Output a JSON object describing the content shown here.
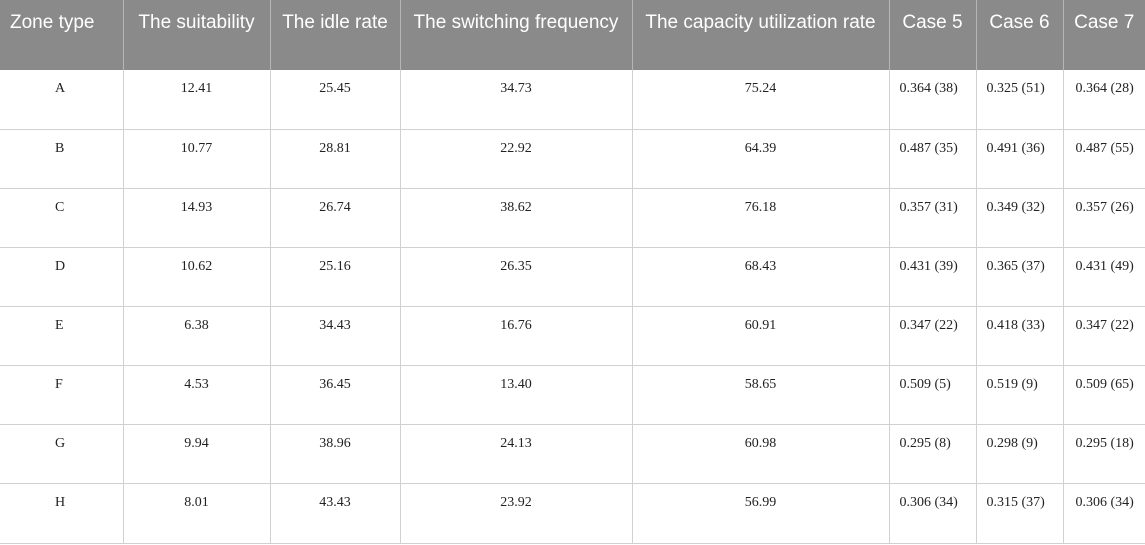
{
  "table": {
    "headers": [
      "Zone type",
      "The suitability",
      "The idle rate",
      "The switching frequency",
      "The capacity utilization rate",
      "Case 5",
      "Case 6",
      "Case 7"
    ],
    "rows": [
      [
        "A",
        "12.41",
        "25.45",
        "34.73",
        "75.24",
        "0.364 (38)",
        "0.325 (51)",
        "0.364 (28)"
      ],
      [
        "B",
        "10.77",
        "28.81",
        "22.92",
        "64.39",
        "0.487 (35)",
        "0.491 (36)",
        "0.487 (55)"
      ],
      [
        "C",
        "14.93",
        "26.74",
        "38.62",
        "76.18",
        "0.357 (31)",
        "0.349 (32)",
        "0.357 (26)"
      ],
      [
        "D",
        "10.62",
        "25.16",
        "26.35",
        "68.43",
        "0.431 (39)",
        "0.365 (37)",
        "0.431 (49)"
      ],
      [
        "E",
        "6.38",
        "34.43",
        "16.76",
        "60.91",
        "0.347 (22)",
        "0.418 (33)",
        "0.347 (22)"
      ],
      [
        "F",
        "4.53",
        "36.45",
        "13.40",
        "58.65",
        "0.509 (5)",
        "0.519 (9)",
        "0.509 (65)"
      ],
      [
        "G",
        "9.94",
        "38.96",
        "24.13",
        "60.98",
        "0.295 (8)",
        "0.298 (9)",
        "0.295 (18)"
      ],
      [
        "H",
        "8.01",
        "43.43",
        "23.92",
        "56.99",
        "0.306 (34)",
        "0.315 (37)",
        "0.306 (34)"
      ]
    ]
  },
  "colors": {
    "header_background": "#8a8a8a",
    "header_text": "#ffffff",
    "grid_lines": "#d0d0d0"
  }
}
